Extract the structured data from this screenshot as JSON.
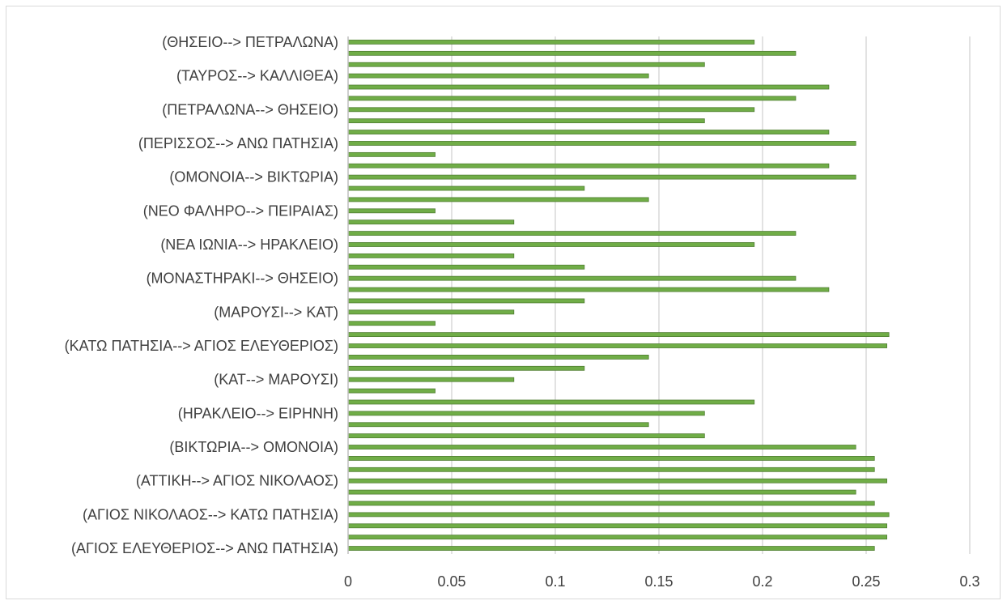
{
  "chart_data": {
    "type": "bar",
    "orientation": "horizontal",
    "title": "",
    "xlabel": "",
    "ylabel": "",
    "xlim": [
      0,
      0.3
    ],
    "xticks": [
      "0",
      "0.05",
      "0.1",
      "0.15",
      "0.2",
      "0.25",
      "0.3"
    ],
    "grid": true,
    "legend": "none",
    "bar_color": "#70AD47",
    "bar_edge_color": "#507E32",
    "labeled_categories": [
      "(ΑΓΙΟΣ ΕΛΕΥΘΕΡΙΟΣ--> ΑΝΩ ΠΑΤΗΣΙΑ)",
      "(ΑΓΙΟΣ ΝΙΚΟΛΑΟΣ--> ΚΑΤΩ ΠΑΤΗΣΙΑ)",
      "(ΑΤΤΙΚΗ--> ΑΓΙΟΣ ΝΙΚΟΛΑΟΣ)",
      "(ΒΙΚΤΩΡΙΑ--> ΟΜΟΝΟΙΑ)",
      "(ΗΡΑΚΛΕΙΟ--> ΕΙΡΗΝΗ)",
      "(ΚΑΤ--> ΜΑΡΟΥΣΙ)",
      "(ΚΑΤΩ ΠΑΤΗΣΙΑ--> ΑΓΙΟΣ ΕΛΕΥΘΕΡΙΟΣ)",
      "(ΜΑΡΟΥΣΙ--> ΚΑΤ)",
      "(ΜΟΝΑΣΤΗΡΑΚΙ--> ΘΗΣΕΙΟ)",
      "(ΝΕΑ ΙΩΝΙΑ--> ΗΡΑΚΛΕΙΟ)",
      "(ΝΕΟ ΦΑΛΗΡΟ--> ΠΕΙΡΑΙΑΣ)",
      "(ΟΜΟΝΟΙΑ--> ΒΙΚΤΩΡΙΑ)",
      "(ΠΕΡΙΣΣΟΣ--> ΑΝΩ ΠΑΤΗΣΙΑ)",
      "(ΠΕΤΡΑΛΩΝΑ--> ΘΗΣΕΙΟ)",
      "(ΤΑΥΡΟΣ--> ΚΑΛΛΙΘΕΑ)",
      "(ΘΗΣΕΙΟ--> ΠΕΤΡΑΛΩΝΑ)"
    ],
    "values": [
      0.254,
      0.26,
      0.26,
      0.261,
      0.254,
      0.245,
      0.26,
      0.254,
      0.254,
      0.245,
      0.172,
      0.145,
      0.172,
      0.196,
      0.042,
      0.08,
      0.114,
      0.145,
      0.26,
      0.261,
      0.042,
      0.08,
      0.114,
      0.232,
      0.216,
      0.114,
      0.08,
      0.196,
      0.216,
      0.08,
      0.042,
      0.145,
      0.114,
      0.245,
      0.232,
      0.042,
      0.245,
      0.232,
      0.172,
      0.196,
      0.216,
      0.232,
      0.145,
      0.172,
      0.216,
      0.196
    ]
  }
}
